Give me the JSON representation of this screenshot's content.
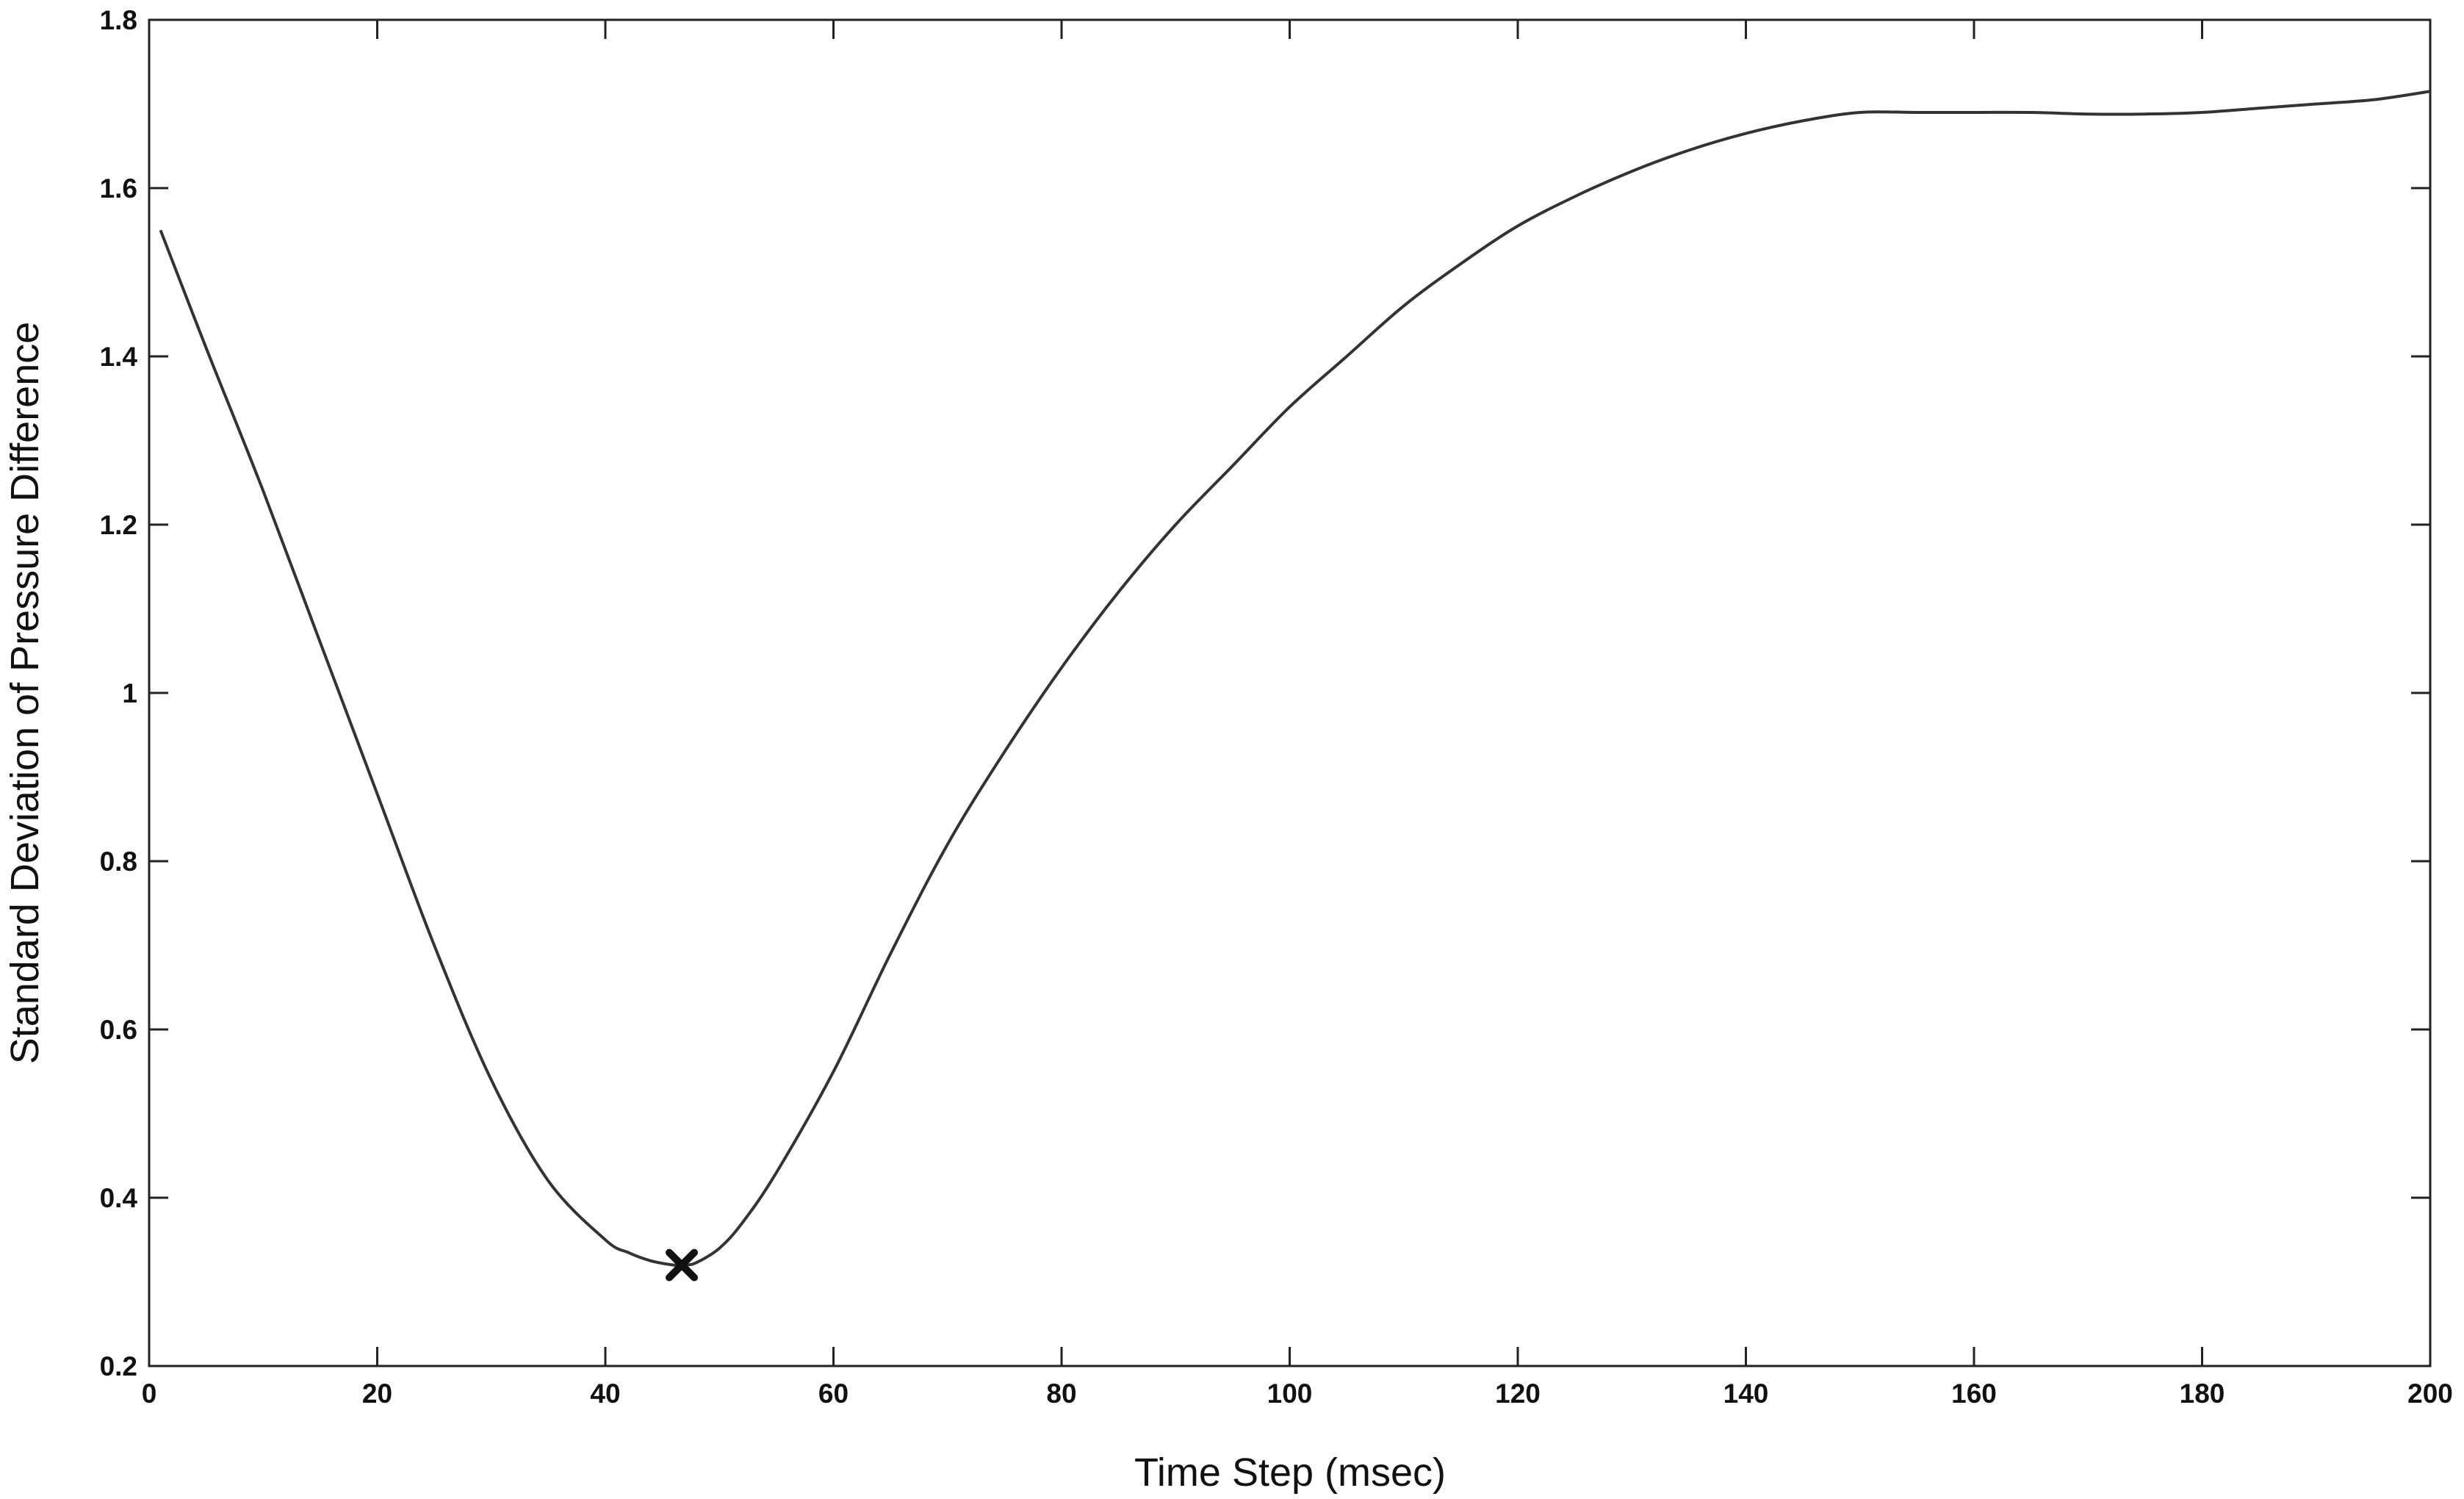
{
  "chart_data": {
    "type": "line",
    "title": "",
    "xlabel": "Time Step (msec)",
    "ylabel": "Standard Deviation of Pressure Difference",
    "xlim": [
      0,
      200
    ],
    "ylim": [
      0.2,
      1.8
    ],
    "x_ticks": [
      "0",
      "20",
      "40",
      "60",
      "80",
      "100",
      "120",
      "140",
      "160",
      "180",
      "200"
    ],
    "y_ticks": [
      "0.2",
      "0.4",
      "0.6",
      "0.8",
      "1",
      "1.2",
      "1.4",
      "1.6",
      "1.8"
    ],
    "grid": false,
    "series": [
      {
        "color": "#333333",
        "x": [
          1,
          5,
          10,
          15,
          20,
          25,
          30,
          35,
          40,
          42,
          44,
          46,
          47,
          48,
          50,
          52,
          55,
          60,
          65,
          70,
          75,
          80,
          85,
          90,
          95,
          100,
          105,
          110,
          115,
          120,
          125,
          130,
          135,
          140,
          145,
          150,
          155,
          160,
          165,
          170,
          175,
          180,
          185,
          190,
          195,
          200
        ],
        "y": [
          1.55,
          1.41,
          1.24,
          1.06,
          0.88,
          0.7,
          0.54,
          0.42,
          0.35,
          0.335,
          0.325,
          0.32,
          0.32,
          0.323,
          0.34,
          0.37,
          0.43,
          0.55,
          0.69,
          0.82,
          0.93,
          1.03,
          1.12,
          1.2,
          1.27,
          1.34,
          1.4,
          1.46,
          1.51,
          1.555,
          1.59,
          1.62,
          1.645,
          1.665,
          1.68,
          1.69,
          1.69,
          1.69,
          1.69,
          1.688,
          1.688,
          1.69,
          1.695,
          1.7,
          1.705,
          1.715
        ]
      }
    ],
    "marker": {
      "x": 46.7,
      "y": 0.32,
      "symbol": "x",
      "color": "#111111"
    }
  }
}
